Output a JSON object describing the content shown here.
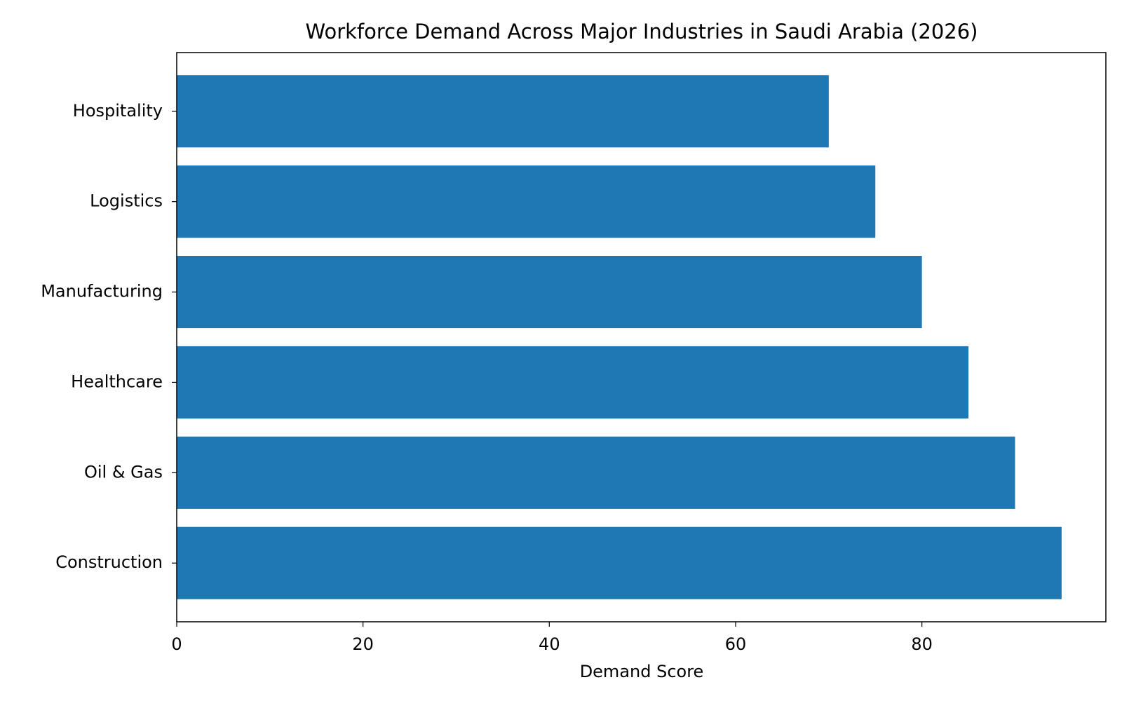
{
  "chart_data": {
    "type": "barh",
    "title": "Workforce Demand Across Major Industries in Saudi Arabia (2026)",
    "x_label": "Demand Score",
    "categories": [
      "Construction",
      "Oil & Gas",
      "Healthcare",
      "Manufacturing",
      "Logistics",
      "Hospitality"
    ],
    "values": [
      95,
      90,
      85,
      80,
      75,
      70
    ],
    "color": "#1f77b4",
    "xlim": [
      0,
      99.75
    ],
    "xticks": [
      0,
      20,
      40,
      60,
      80
    ],
    "grid": false
  }
}
